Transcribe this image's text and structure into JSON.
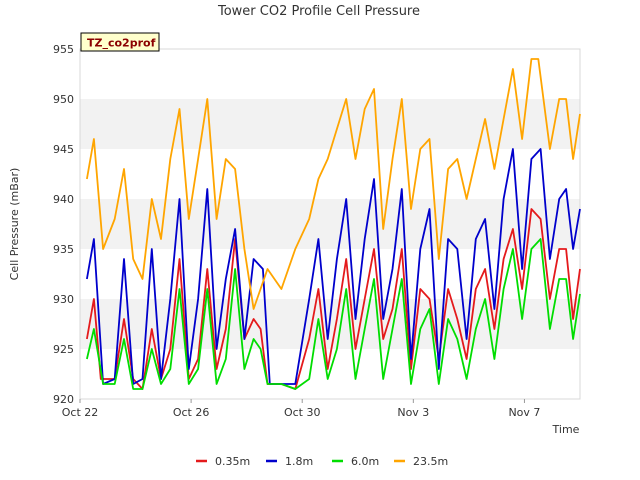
{
  "chart_data": {
    "type": "line",
    "title": "Tower CO2 Profile Cell Pressure",
    "site_label": "TZ_co2prof",
    "xlabel": "Time",
    "ylabel": "Cell Pressure (mBar)",
    "ylim": [
      920,
      955
    ],
    "xlim": [
      "2023-10-22",
      "2023-11-09"
    ],
    "yticks": [
      920,
      925,
      930,
      935,
      940,
      945,
      950,
      955
    ],
    "xticks": [
      {
        "date": "2023-10-22",
        "label": "Oct 22"
      },
      {
        "date": "2023-10-26",
        "label": "Oct 26"
      },
      {
        "date": "2023-10-30",
        "label": "Oct 30"
      },
      {
        "date": "2023-11-03",
        "label": "Nov 3"
      },
      {
        "date": "2023-11-07",
        "label": "Nov 7"
      }
    ],
    "grid": "horizontal alternating bands",
    "legend_position": "bottom",
    "series": [
      {
        "name": "0.35m",
        "color": "#e41a1c",
        "points": [
          [
            "2023-10-22 06:00",
            926
          ],
          [
            "2023-10-22 12:00",
            930
          ],
          [
            "2023-10-22 18:00",
            922
          ],
          [
            "2023-10-23 06:00",
            922
          ],
          [
            "2023-10-23 14:00",
            928
          ],
          [
            "2023-10-23 22:00",
            922
          ],
          [
            "2023-10-24 06:00",
            921
          ],
          [
            "2023-10-24 14:00",
            927
          ],
          [
            "2023-10-24 22:00",
            922
          ],
          [
            "2023-10-25 06:00",
            925
          ],
          [
            "2023-10-25 14:00",
            934
          ],
          [
            "2023-10-25 22:00",
            922
          ],
          [
            "2023-10-26 06:00",
            924
          ],
          [
            "2023-10-26 14:00",
            933
          ],
          [
            "2023-10-26 22:00",
            923
          ],
          [
            "2023-10-27 06:00",
            927
          ],
          [
            "2023-10-27 14:00",
            936
          ],
          [
            "2023-10-27 22:00",
            926
          ],
          [
            "2023-10-28 06:00",
            928
          ],
          [
            "2023-10-28 12:00",
            927
          ],
          [
            "2023-10-28 18:00",
            921.5
          ],
          [
            "2023-10-29 06:00",
            921.5
          ],
          [
            "2023-10-29 18:00",
            921
          ],
          [
            "2023-10-30 06:00",
            926
          ],
          [
            "2023-10-30 14:00",
            931
          ],
          [
            "2023-10-30 22:00",
            923
          ],
          [
            "2023-10-31 06:00",
            928
          ],
          [
            "2023-10-31 14:00",
            934
          ],
          [
            "2023-10-31 22:00",
            925
          ],
          [
            "2023-11-01 06:00",
            930
          ],
          [
            "2023-11-01 14:00",
            935
          ],
          [
            "2023-11-01 22:00",
            926
          ],
          [
            "2023-11-02 06:00",
            929
          ],
          [
            "2023-11-02 14:00",
            935
          ],
          [
            "2023-11-02 22:00",
            923
          ],
          [
            "2023-11-03 06:00",
            931
          ],
          [
            "2023-11-03 14:00",
            930
          ],
          [
            "2023-11-03 22:00",
            924
          ],
          [
            "2023-11-04 06:00",
            931
          ],
          [
            "2023-11-04 14:00",
            928
          ],
          [
            "2023-11-04 22:00",
            924
          ],
          [
            "2023-11-05 06:00",
            931
          ],
          [
            "2023-11-05 14:00",
            933
          ],
          [
            "2023-11-05 22:00",
            927
          ],
          [
            "2023-11-06 06:00",
            934
          ],
          [
            "2023-11-06 14:00",
            937
          ],
          [
            "2023-11-06 22:00",
            931
          ],
          [
            "2023-11-07 06:00",
            939
          ],
          [
            "2023-11-07 14:00",
            938
          ],
          [
            "2023-11-07 22:00",
            930
          ],
          [
            "2023-11-08 06:00",
            935
          ],
          [
            "2023-11-08 12:00",
            935
          ],
          [
            "2023-11-08 18:00",
            928
          ],
          [
            "2023-11-09 00:00",
            933
          ]
        ]
      },
      {
        "name": "1.8m",
        "color": "#0000cc",
        "points": [
          [
            "2023-10-22 06:00",
            932
          ],
          [
            "2023-10-22 12:00",
            936
          ],
          [
            "2023-10-22 20:00",
            921.5
          ],
          [
            "2023-10-23 06:00",
            922
          ],
          [
            "2023-10-23 14:00",
            934
          ],
          [
            "2023-10-23 22:00",
            921.5
          ],
          [
            "2023-10-24 06:00",
            922
          ],
          [
            "2023-10-24 14:00",
            935
          ],
          [
            "2023-10-24 22:00",
            922
          ],
          [
            "2023-10-25 06:00",
            930
          ],
          [
            "2023-10-25 14:00",
            940
          ],
          [
            "2023-10-25 22:00",
            923
          ],
          [
            "2023-10-26 06:00",
            930
          ],
          [
            "2023-10-26 14:00",
            941
          ],
          [
            "2023-10-26 22:00",
            925
          ],
          [
            "2023-10-27 06:00",
            932
          ],
          [
            "2023-10-27 14:00",
            937
          ],
          [
            "2023-10-27 22:00",
            926
          ],
          [
            "2023-10-28 06:00",
            934
          ],
          [
            "2023-10-28 14:00",
            933
          ],
          [
            "2023-10-28 20:00",
            921.5
          ],
          [
            "2023-10-29 06:00",
            921.5
          ],
          [
            "2023-10-29 18:00",
            921.5
          ],
          [
            "2023-10-30 06:00",
            930
          ],
          [
            "2023-10-30 14:00",
            936
          ],
          [
            "2023-10-30 22:00",
            926
          ],
          [
            "2023-10-31 06:00",
            934
          ],
          [
            "2023-10-31 14:00",
            940
          ],
          [
            "2023-10-31 22:00",
            928
          ],
          [
            "2023-11-01 06:00",
            936
          ],
          [
            "2023-11-01 14:00",
            942
          ],
          [
            "2023-11-01 22:00",
            928
          ],
          [
            "2023-11-02 06:00",
            933
          ],
          [
            "2023-11-02 14:00",
            941
          ],
          [
            "2023-11-02 22:00",
            924
          ],
          [
            "2023-11-03 06:00",
            935
          ],
          [
            "2023-11-03 14:00",
            939
          ],
          [
            "2023-11-03 22:00",
            923
          ],
          [
            "2023-11-04 06:00",
            936
          ],
          [
            "2023-11-04 14:00",
            935
          ],
          [
            "2023-11-04 22:00",
            926
          ],
          [
            "2023-11-05 06:00",
            936
          ],
          [
            "2023-11-05 14:00",
            938
          ],
          [
            "2023-11-05 22:00",
            929
          ],
          [
            "2023-11-06 06:00",
            940
          ],
          [
            "2023-11-06 14:00",
            945
          ],
          [
            "2023-11-06 22:00",
            933
          ],
          [
            "2023-11-07 06:00",
            944
          ],
          [
            "2023-11-07 14:00",
            945
          ],
          [
            "2023-11-07 22:00",
            934
          ],
          [
            "2023-11-08 06:00",
            940
          ],
          [
            "2023-11-08 12:00",
            941
          ],
          [
            "2023-11-08 18:00",
            935
          ],
          [
            "2023-11-09 00:00",
            939
          ]
        ]
      },
      {
        "name": "6.0m",
        "color": "#00dd00",
        "points": [
          [
            "2023-10-22 06:00",
            924
          ],
          [
            "2023-10-22 12:00",
            927
          ],
          [
            "2023-10-22 20:00",
            921.5
          ],
          [
            "2023-10-23 06:00",
            921.5
          ],
          [
            "2023-10-23 14:00",
            926
          ],
          [
            "2023-10-23 22:00",
            921
          ],
          [
            "2023-10-24 06:00",
            921
          ],
          [
            "2023-10-24 14:00",
            925
          ],
          [
            "2023-10-24 22:00",
            921.5
          ],
          [
            "2023-10-25 06:00",
            923
          ],
          [
            "2023-10-25 14:00",
            931
          ],
          [
            "2023-10-25 22:00",
            921.5
          ],
          [
            "2023-10-26 06:00",
            923
          ],
          [
            "2023-10-26 14:00",
            931
          ],
          [
            "2023-10-26 22:00",
            921.5
          ],
          [
            "2023-10-27 06:00",
            924
          ],
          [
            "2023-10-27 14:00",
            933
          ],
          [
            "2023-10-27 22:00",
            923
          ],
          [
            "2023-10-28 06:00",
            926
          ],
          [
            "2023-10-28 12:00",
            925
          ],
          [
            "2023-10-28 18:00",
            921.5
          ],
          [
            "2023-10-29 06:00",
            921.5
          ],
          [
            "2023-10-29 18:00",
            921
          ],
          [
            "2023-10-30 06:00",
            922
          ],
          [
            "2023-10-30 14:00",
            928
          ],
          [
            "2023-10-30 22:00",
            922
          ],
          [
            "2023-10-31 06:00",
            925
          ],
          [
            "2023-10-31 14:00",
            931
          ],
          [
            "2023-10-31 22:00",
            922
          ],
          [
            "2023-11-01 06:00",
            927
          ],
          [
            "2023-11-01 14:00",
            932
          ],
          [
            "2023-11-01 22:00",
            922
          ],
          [
            "2023-11-02 06:00",
            927
          ],
          [
            "2023-11-02 14:00",
            932
          ],
          [
            "2023-11-02 22:00",
            921.5
          ],
          [
            "2023-11-03 06:00",
            927
          ],
          [
            "2023-11-03 14:00",
            929
          ],
          [
            "2023-11-03 22:00",
            921.5
          ],
          [
            "2023-11-04 06:00",
            928
          ],
          [
            "2023-11-04 14:00",
            926
          ],
          [
            "2023-11-04 22:00",
            922
          ],
          [
            "2023-11-05 06:00",
            927
          ],
          [
            "2023-11-05 14:00",
            930
          ],
          [
            "2023-11-05 22:00",
            924
          ],
          [
            "2023-11-06 06:00",
            931
          ],
          [
            "2023-11-06 14:00",
            935
          ],
          [
            "2023-11-06 22:00",
            928
          ],
          [
            "2023-11-07 06:00",
            935
          ],
          [
            "2023-11-07 14:00",
            936
          ],
          [
            "2023-11-07 22:00",
            927
          ],
          [
            "2023-11-08 06:00",
            932
          ],
          [
            "2023-11-08 12:00",
            932
          ],
          [
            "2023-11-08 18:00",
            926
          ],
          [
            "2023-11-09 00:00",
            930.5
          ]
        ]
      },
      {
        "name": "23.5m",
        "color": "#ffa500",
        "points": [
          [
            "2023-10-22 06:00",
            942
          ],
          [
            "2023-10-22 12:00",
            946
          ],
          [
            "2023-10-22 20:00",
            935
          ],
          [
            "2023-10-23 06:00",
            938
          ],
          [
            "2023-10-23 14:00",
            943
          ],
          [
            "2023-10-23 22:00",
            934
          ],
          [
            "2023-10-24 06:00",
            932
          ],
          [
            "2023-10-24 14:00",
            940
          ],
          [
            "2023-10-24 22:00",
            936
          ],
          [
            "2023-10-25 06:00",
            944
          ],
          [
            "2023-10-25 14:00",
            949
          ],
          [
            "2023-10-25 22:00",
            938
          ],
          [
            "2023-10-26 06:00",
            944
          ],
          [
            "2023-10-26 14:00",
            950
          ],
          [
            "2023-10-26 22:00",
            938
          ],
          [
            "2023-10-27 06:00",
            944
          ],
          [
            "2023-10-27 14:00",
            943
          ],
          [
            "2023-10-27 22:00",
            935
          ],
          [
            "2023-10-28 06:00",
            929
          ],
          [
            "2023-10-28 18:00",
            933
          ],
          [
            "2023-10-29 06:00",
            931
          ],
          [
            "2023-10-29 18:00",
            935
          ],
          [
            "2023-10-30 06:00",
            938
          ],
          [
            "2023-10-30 14:00",
            942
          ],
          [
            "2023-10-30 22:00",
            944
          ],
          [
            "2023-10-31 06:00",
            947
          ],
          [
            "2023-10-31 14:00",
            950
          ],
          [
            "2023-10-31 22:00",
            944
          ],
          [
            "2023-11-01 06:00",
            949
          ],
          [
            "2023-11-01 14:00",
            951
          ],
          [
            "2023-11-01 22:00",
            937
          ],
          [
            "2023-11-02 06:00",
            944
          ],
          [
            "2023-11-02 14:00",
            950
          ],
          [
            "2023-11-02 22:00",
            939
          ],
          [
            "2023-11-03 06:00",
            945
          ],
          [
            "2023-11-03 14:00",
            946
          ],
          [
            "2023-11-03 22:00",
            934
          ],
          [
            "2023-11-04 06:00",
            943
          ],
          [
            "2023-11-04 14:00",
            944
          ],
          [
            "2023-11-04 22:00",
            940
          ],
          [
            "2023-11-05 06:00",
            944
          ],
          [
            "2023-11-05 14:00",
            948
          ],
          [
            "2023-11-05 22:00",
            943
          ],
          [
            "2023-11-06 06:00",
            948
          ],
          [
            "2023-11-06 14:00",
            953
          ],
          [
            "2023-11-06 22:00",
            946
          ],
          [
            "2023-11-07 06:00",
            954
          ],
          [
            "2023-11-07 12:00",
            954
          ],
          [
            "2023-11-07 22:00",
            945
          ],
          [
            "2023-11-08 06:00",
            950
          ],
          [
            "2023-11-08 12:00",
            950
          ],
          [
            "2023-11-08 18:00",
            944
          ],
          [
            "2023-11-09 00:00",
            948.5
          ]
        ]
      }
    ]
  }
}
